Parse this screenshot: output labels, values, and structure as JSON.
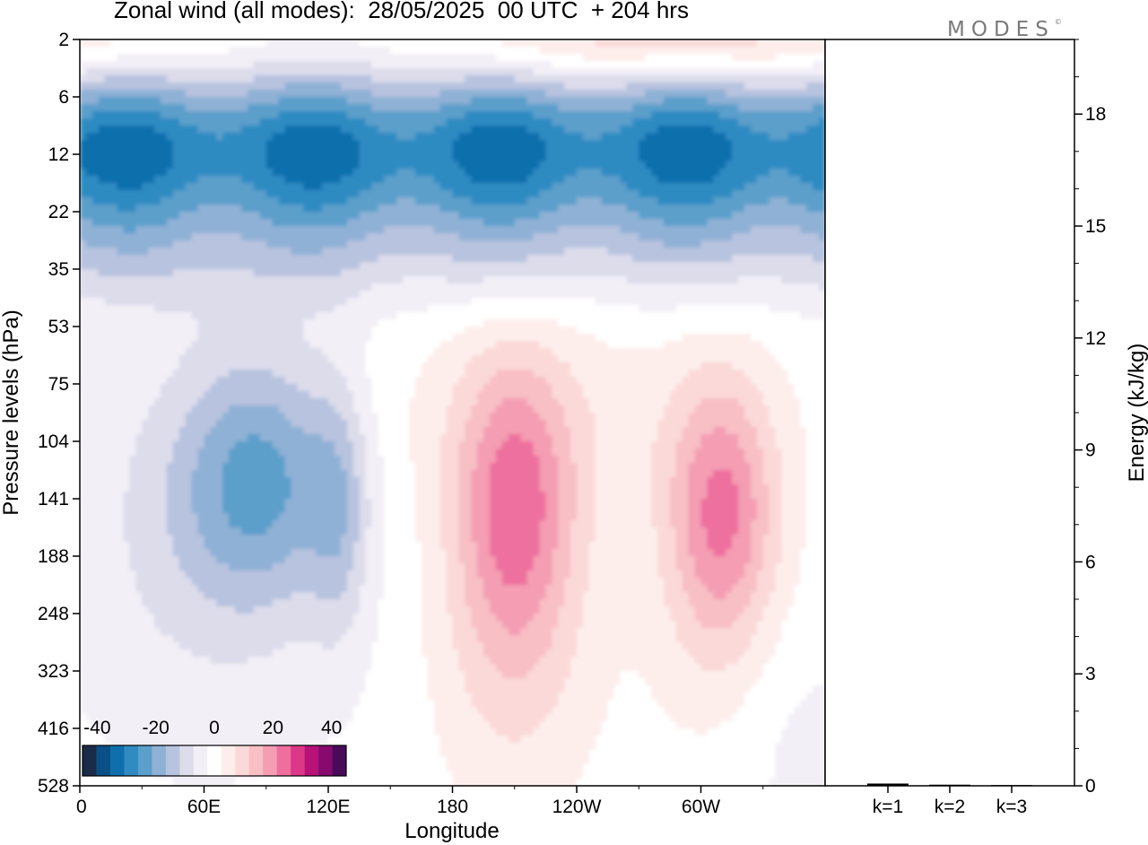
{
  "header": {
    "title": "Zonal wind (all modes):  28/05/2025  00 UTC  + 204 hrs",
    "logo_text": "MODES",
    "logo_mark": "©"
  },
  "chart_data": [
    {
      "type": "heatmap",
      "title": "Zonal wind (all modes):  28/05/2025  00 UTC  + 204 hrs",
      "xlabel": "Longitude",
      "ylabel": "Pressure levels (hPa)",
      "x_ticks": [
        "0",
        "60E",
        "120E",
        "180",
        "120W",
        "60W"
      ],
      "y_ticks": [
        "2",
        "6",
        "12",
        "22",
        "35",
        "53",
        "75",
        "104",
        "141",
        "188",
        "248",
        "323",
        "416",
        "528"
      ],
      "x_range_deg": [
        0,
        360
      ],
      "colorbar": {
        "ticks": [
          "-40",
          "-20",
          "0",
          "20",
          "40"
        ],
        "range": [
          -45,
          45
        ],
        "step": 5,
        "colors": [
          "#1b2c4a",
          "#0a4f86",
          "#0f6fad",
          "#2f8bc2",
          "#5b9fcb",
          "#8fb1d5",
          "#b7c3df",
          "#dcdceb",
          "#f2eff6",
          "#ffffff",
          "#fdeeec",
          "#fbd9d8",
          "#f8bfc5",
          "#f49db3",
          "#ee6f9e",
          "#dd3788",
          "#b61278",
          "#870b6f",
          "#4a0a5a"
        ]
      },
      "field_features": [
        {
          "name": "stratospheric easterly band",
          "lon_range": [
            0,
            360
          ],
          "p_range": [
            6,
            35
          ],
          "peak": -33
        },
        {
          "name": "easterly core",
          "lon": 88,
          "p": 120,
          "peak": -22
        },
        {
          "name": "westerly core",
          "lon": 208,
          "p": 135,
          "peak": 22
        },
        {
          "name": "westerly core",
          "lon": 310,
          "p": 140,
          "peak": 22
        },
        {
          "name": "upper westerlies",
          "lon_range": [
            40,
            360
          ],
          "p_range": [
            2,
            4
          ],
          "peak": 15
        }
      ]
    },
    {
      "type": "bar",
      "ylabel": "Energy (kJ/kg)",
      "categories": [
        "k=1",
        "k=2",
        "k=3"
      ],
      "values": [
        0.06,
        0.03,
        0.02
      ],
      "ylim": [
        0,
        20
      ],
      "y_ticks": [
        "0",
        "3",
        "6",
        "9",
        "12",
        "15",
        "18"
      ]
    }
  ]
}
